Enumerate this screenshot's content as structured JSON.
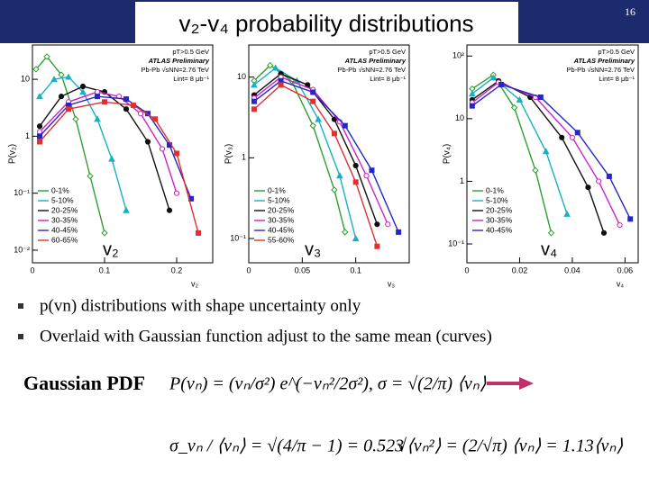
{
  "page_number": "16",
  "title": "v₂-v₄ probability distributions",
  "panels": [
    {
      "type": "line",
      "log_y": true,
      "big_label": "v₂",
      "x_label": "v₂",
      "y_label": "P(v₂)",
      "notes": [
        "pT>0.5 GeV",
        "ATLAS Preliminary",
        "Pb-Pb √sNN=2.76 TeV",
        "Lint= 8 μb⁻¹"
      ],
      "xlim": [
        0,
        0.25
      ],
      "ylim": [
        0.006,
        40
      ],
      "xticks": [
        0,
        0.1,
        0.2
      ],
      "yticks": [
        {
          "value": 0.01,
          "label": "10⁻²"
        },
        {
          "value": 0.1,
          "label": "10⁻¹"
        },
        1,
        10
      ],
      "series": [
        {
          "name": "0-1%",
          "color": "#2f9e2f",
          "x": [
            0.005,
            0.02,
            0.04,
            0.06,
            0.08,
            0.1
          ],
          "values": [
            15,
            25,
            12,
            2,
            0.2,
            0.02
          ]
        },
        {
          "name": "5-10%",
          "color": "#17b0c4",
          "x": [
            0.01,
            0.03,
            0.05,
            0.07,
            0.09,
            0.11,
            0.13
          ],
          "values": [
            5,
            10,
            11,
            6,
            2,
            0.4,
            0.05
          ]
        },
        {
          "name": "20-25%",
          "color": "#111111",
          "x": [
            0.01,
            0.04,
            0.07,
            0.1,
            0.13,
            0.16,
            0.19
          ],
          "values": [
            1.5,
            5,
            7.5,
            6,
            3,
            0.8,
            0.05
          ]
        },
        {
          "name": "30-35%",
          "color": "#d020c8",
          "x": [
            0.01,
            0.05,
            0.09,
            0.12,
            0.15,
            0.18,
            0.2
          ],
          "values": [
            1.2,
            4,
            6,
            5,
            2.5,
            0.6,
            0.1
          ]
        },
        {
          "name": "40-45%",
          "color": "#2626c8",
          "x": [
            0.01,
            0.05,
            0.09,
            0.13,
            0.16,
            0.19,
            0.22
          ],
          "values": [
            1,
            3.5,
            5,
            4.5,
            2.5,
            0.7,
            0.08
          ]
        },
        {
          "name": "60-65%",
          "color": "#e03030",
          "x": [
            0.01,
            0.05,
            0.1,
            0.14,
            0.17,
            0.2,
            0.23
          ],
          "values": [
            0.8,
            3,
            4,
            3.5,
            2,
            0.5,
            0.02
          ]
        }
      ]
    },
    {
      "type": "line",
      "log_y": true,
      "big_label": "v₃",
      "x_label": "v₃",
      "y_label": "P(v₃)",
      "notes": [
        "pT>0.5 GeV",
        "ATLAS Preliminary",
        "Pb-Pb √sNN=2.76 TeV",
        "Lint= 8 μb⁻¹"
      ],
      "xlim": [
        0,
        0.15
      ],
      "ylim": [
        0.05,
        25
      ],
      "xticks": [
        0,
        0.05,
        0.1
      ],
      "yticks": [
        {
          "value": 0.1,
          "label": "10⁻¹"
        },
        1,
        10
      ],
      "series": [
        {
          "name": "0-1%",
          "color": "#2f9e2f",
          "x": [
            0.005,
            0.02,
            0.04,
            0.06,
            0.08,
            0.09
          ],
          "values": [
            9,
            14,
            9,
            2.5,
            0.4,
            0.12
          ]
        },
        {
          "name": "5-10%",
          "color": "#17b0c4",
          "x": [
            0.005,
            0.025,
            0.045,
            0.065,
            0.085,
            0.1
          ],
          "values": [
            8,
            13,
            9,
            3,
            0.6,
            0.1
          ]
        },
        {
          "name": "20-25%",
          "color": "#111111",
          "x": [
            0.005,
            0.03,
            0.055,
            0.08,
            0.1,
            0.12
          ],
          "values": [
            6,
            11,
            8,
            3,
            0.8,
            0.15
          ]
        },
        {
          "name": "30-35%",
          "color": "#d020c8",
          "x": [
            0.005,
            0.03,
            0.06,
            0.085,
            0.11,
            0.13
          ],
          "values": [
            5.5,
            10,
            7,
            2.8,
            0.6,
            0.15
          ]
        },
        {
          "name": "40-45%",
          "color": "#2626c8",
          "x": [
            0.005,
            0.03,
            0.06,
            0.09,
            0.115,
            0.14
          ],
          "values": [
            5,
            9,
            6.5,
            2.5,
            0.7,
            0.12
          ]
        },
        {
          "name": "55-60%",
          "color": "#e03030",
          "x": [
            0.005,
            0.03,
            0.06,
            0.08,
            0.1,
            0.12
          ],
          "values": [
            4,
            8,
            5,
            2,
            0.5,
            0.08
          ]
        }
      ]
    },
    {
      "type": "line",
      "log_y": true,
      "big_label": "v₄",
      "x_label": "v₄",
      "y_label": "P(v₄)",
      "notes": [
        "pT>0.5 GeV",
        "ATLAS Preliminary",
        "Pb-Pb √sNN=2.76 TeV",
        "Lint= 8 μb⁻¹"
      ],
      "xlim": [
        0,
        0.065
      ],
      "ylim": [
        0.05,
        150
      ],
      "xticks": [
        0,
        0.02,
        0.04,
        0.06
      ],
      "yticks": [
        {
          "value": 0.1,
          "label": "10⁻¹"
        },
        1,
        10,
        {
          "value": 100,
          "label": "10²"
        }
      ],
      "series": [
        {
          "name": "0-1%",
          "color": "#2f9e2f",
          "x": [
            0.002,
            0.01,
            0.018,
            0.026,
            0.032
          ],
          "values": [
            30,
            50,
            15,
            1.5,
            0.15
          ]
        },
        {
          "name": "5-10%",
          "color": "#17b0c4",
          "x": [
            0.002,
            0.01,
            0.02,
            0.03,
            0.038
          ],
          "values": [
            25,
            45,
            20,
            3,
            0.3
          ]
        },
        {
          "name": "20-25%",
          "color": "#111111",
          "x": [
            0.002,
            0.012,
            0.024,
            0.036,
            0.046,
            0.052
          ],
          "values": [
            20,
            40,
            22,
            5,
            0.8,
            0.15
          ]
        },
        {
          "name": "30-35%",
          "color": "#d020c8",
          "x": [
            0.002,
            0.012,
            0.026,
            0.04,
            0.05,
            0.058
          ],
          "values": [
            18,
            38,
            22,
            5,
            1,
            0.2
          ]
        },
        {
          "name": "40-45%",
          "color": "#2626c8",
          "x": [
            0.002,
            0.013,
            0.028,
            0.042,
            0.054,
            0.062
          ],
          "values": [
            16,
            35,
            22,
            6,
            1.2,
            0.25
          ]
        }
      ]
    }
  ],
  "bullets": [
    "p(vn) distributions with shape uncertainty only",
    "Overlaid with Gaussian function adjust to the same mean (curves)"
  ],
  "formulas": {
    "gaussian_label": "Gaussian PDF",
    "pdf": "P(vₙ) = (vₙ/σ²) e^(−vₙ²/2σ²),  σ = √(2/π) ⟨vₙ⟩",
    "ratio": "σ_vₙ / ⟨vₙ⟩ = √(4/π − 1) = 0.523",
    "rms": "√⟨vₙ²⟩ = (2/√π) ⟨vₙ⟩ = 1.13⟨vₙ⟩"
  }
}
